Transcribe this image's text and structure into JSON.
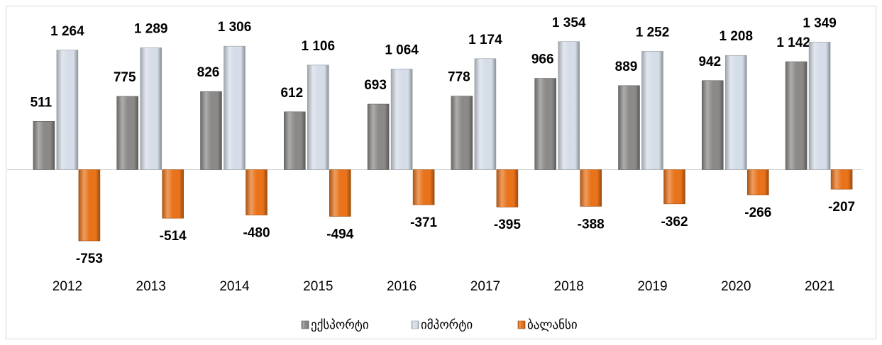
{
  "chart_data": {
    "type": "bar",
    "categories": [
      "2012",
      "2013",
      "2014",
      "2015",
      "2016",
      "2017",
      "2018",
      "2019",
      "2020",
      "2021"
    ],
    "series": [
      {
        "name": "ექსპორტი",
        "color": "#8c8a88",
        "values": [
          511,
          775,
          826,
          612,
          693,
          778,
          966,
          889,
          942,
          1142
        ],
        "value_labels": [
          "511",
          "775",
          "826",
          "612",
          "693",
          "778",
          "966",
          "889",
          "942",
          "1 142"
        ]
      },
      {
        "name": "იმპორტი",
        "color": "#d5dde8",
        "values": [
          1264,
          1289,
          1306,
          1106,
          1064,
          1174,
          1354,
          1252,
          1208,
          1349
        ],
        "value_labels": [
          "1 264",
          "1 289",
          "1 306",
          "1 106",
          "1 064",
          "1 174",
          "1 354",
          "1 252",
          "1 208",
          "1 349"
        ]
      },
      {
        "name": "ბალანსი",
        "color": "#e8731a",
        "values": [
          -753,
          -514,
          -480,
          -494,
          -371,
          -395,
          -388,
          -362,
          -266,
          -207
        ],
        "value_labels": [
          "-753",
          "-514",
          "-480",
          "-494",
          "-371",
          "-395",
          "-388",
          "-362",
          "-266",
          "-207"
        ]
      }
    ],
    "legend": "bottom"
  }
}
